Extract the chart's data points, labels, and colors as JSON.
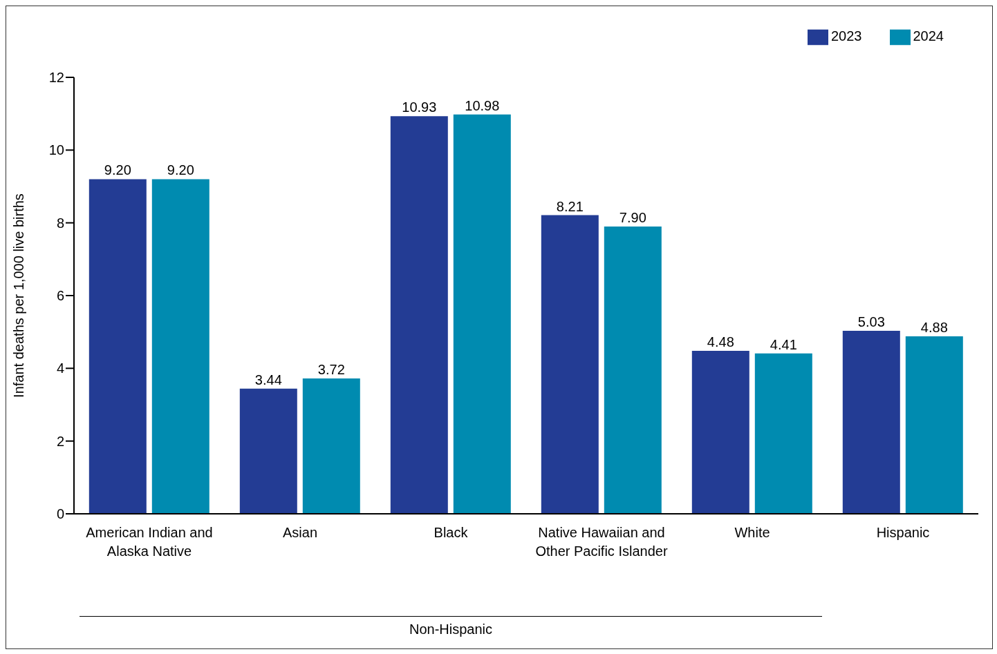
{
  "chart_data": {
    "type": "bar",
    "ylabel": "Infant deaths per 1,000 live births",
    "categories": [
      "American Indian and Alaska Native",
      "Asian",
      "Black",
      "Native Hawaiian and Other Pacific Islander",
      "White",
      "Hispanic"
    ],
    "series": [
      {
        "name": "2023",
        "color": "#233c94",
        "values": [
          9.2,
          3.44,
          10.93,
          8.21,
          4.48,
          5.03
        ],
        "value_labels": [
          "9.20",
          "3.44",
          "10.93",
          "8.21",
          "4.48",
          "5.03"
        ]
      },
      {
        "name": "2024",
        "color": "#008bb0",
        "values": [
          9.2,
          3.72,
          10.98,
          7.9,
          4.41,
          4.88
        ],
        "value_labels": [
          "9.20",
          "3.72",
          "10.98",
          "7.90",
          "4.41",
          "4.88"
        ]
      }
    ],
    "ylim": [
      0,
      12
    ],
    "yticks": [
      0,
      2,
      4,
      6,
      8,
      10,
      12
    ],
    "grid": false,
    "legend": "top right",
    "annotations": [
      "Non-Hispanic"
    ]
  }
}
